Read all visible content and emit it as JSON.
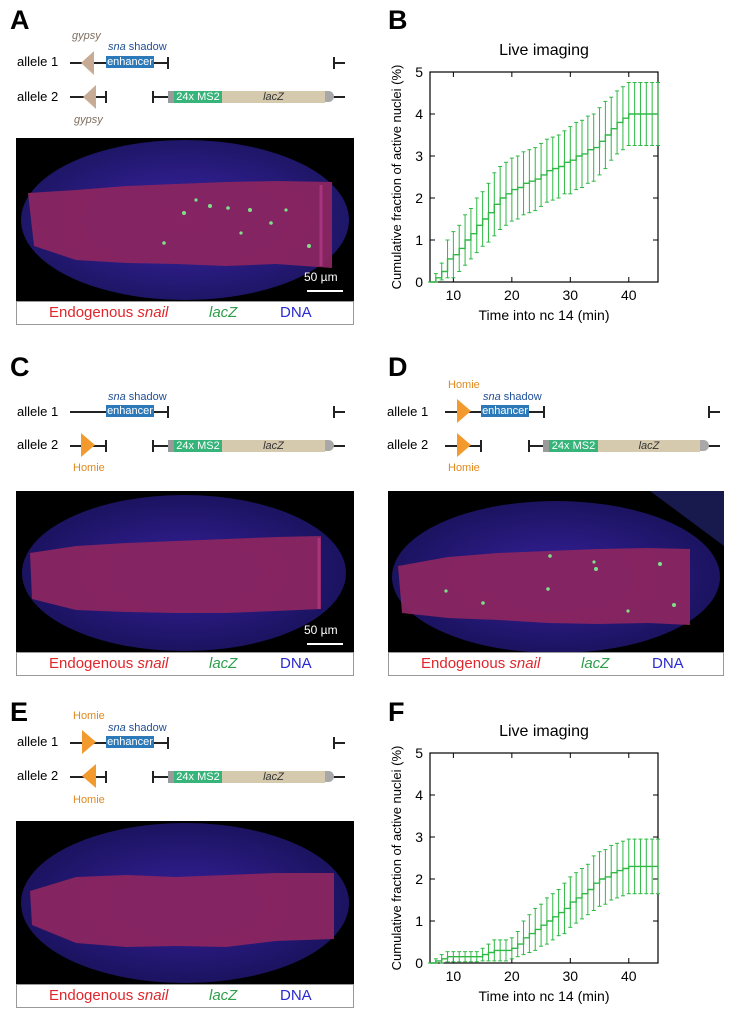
{
  "panels": {
    "A": {
      "label": "A",
      "allele1": "allele 1",
      "allele2": "allele 2",
      "insulator_top": "gypsy",
      "insulator_bottom": "gypsy",
      "enh_prefix": "sna",
      "enh_suffix": " shadow",
      "enhancer": "enhancer",
      "ms2": "24x MS2",
      "reporter": "lacZ",
      "scale": "50 µm",
      "cap_red": "Endogenous ",
      "cap_red_it": "snail",
      "cap_green": "lacZ",
      "cap_blue": "DNA"
    },
    "B": {
      "label": "B"
    },
    "C": {
      "label": "C",
      "allele1": "allele 1",
      "allele2": "allele 2",
      "insulator_bottom": "Homie",
      "enh_prefix": "sna",
      "enh_suffix": " shadow",
      "enhancer": "enhancer",
      "ms2": "24x MS2",
      "reporter": "lacZ",
      "scale": "50 µm",
      "cap_red": "Endogenous ",
      "cap_red_it": "snail",
      "cap_green": "lacZ",
      "cap_blue": "DNA"
    },
    "D": {
      "label": "D",
      "allele1": "allele 1",
      "allele2": "allele 2",
      "insulator_top": "Homie",
      "insulator_bottom": "Homie",
      "enh_prefix": "sna",
      "enh_suffix": " shadow",
      "enhancer": "enhancer",
      "ms2": "24x MS2",
      "reporter": "lacZ",
      "cap_red": "Endogenous ",
      "cap_red_it": "snail",
      "cap_green": "lacZ",
      "cap_blue": "DNA"
    },
    "E": {
      "label": "E",
      "allele1": "allele 1",
      "allele2": "allele 2",
      "insulator_top": "Homie",
      "insulator_bottom": "Homie",
      "enh_prefix": "sna",
      "enh_suffix": " shadow",
      "enhancer": "enhancer",
      "ms2": "24x MS2",
      "reporter": "lacZ",
      "cap_red": "Endogenous ",
      "cap_red_it": "snail",
      "cap_green": "lacZ",
      "cap_blue": "DNA"
    },
    "F": {
      "label": "F"
    }
  },
  "colors": {
    "series": "#2fb944",
    "errorbar": "#2fb944",
    "red": "#e0262c",
    "green": "#2e9e4b",
    "blue": "#2a2ad2",
    "gypsy": "#c7ab94",
    "homie": "#f29a2e"
  },
  "chart_data": [
    {
      "id": "B",
      "type": "line",
      "title": "Live imaging",
      "xlabel": "Time into nc 14 (min)",
      "ylabel": "Cumulative fraction of active nuclei (%)",
      "xlim": [
        6,
        45
      ],
      "ylim": [
        0,
        5
      ],
      "xticks": [
        10,
        20,
        30,
        40
      ],
      "yticks": [
        0,
        1,
        2,
        3,
        4,
        5
      ],
      "series": [
        {
          "x": [
            6,
            7,
            8,
            9,
            10,
            11,
            12,
            13,
            14,
            15,
            16,
            17,
            18,
            19,
            20,
            21,
            22,
            23,
            24,
            25,
            26,
            27,
            28,
            29,
            30,
            31,
            32,
            33,
            34,
            35,
            36,
            37,
            38,
            39,
            40,
            41,
            42,
            43,
            44,
            45
          ],
          "y": [
            0,
            0.1,
            0.25,
            0.55,
            0.65,
            0.8,
            1.0,
            1.15,
            1.35,
            1.5,
            1.65,
            1.85,
            2.0,
            2.1,
            2.2,
            2.25,
            2.35,
            2.4,
            2.45,
            2.55,
            2.65,
            2.7,
            2.75,
            2.85,
            2.9,
            3.0,
            3.05,
            3.15,
            3.2,
            3.35,
            3.5,
            3.65,
            3.8,
            3.9,
            4.0,
            4.0,
            4.0,
            4.0,
            4.0,
            4.0
          ],
          "err": [
            0,
            0.1,
            0.2,
            0.45,
            0.55,
            0.55,
            0.6,
            0.6,
            0.65,
            0.65,
            0.7,
            0.75,
            0.75,
            0.75,
            0.75,
            0.75,
            0.75,
            0.75,
            0.75,
            0.75,
            0.75,
            0.75,
            0.75,
            0.75,
            0.8,
            0.8,
            0.8,
            0.8,
            0.8,
            0.8,
            0.8,
            0.75,
            0.75,
            0.75,
            0.75,
            0.75,
            0.75,
            0.75,
            0.75,
            0.75
          ]
        }
      ]
    },
    {
      "id": "F",
      "type": "line",
      "title": "Live imaging",
      "xlabel": "Time into nc 14 (min)",
      "ylabel": "Cumulative fraction of active nuclei (%)",
      "xlim": [
        6,
        45
      ],
      "ylim": [
        0,
        5
      ],
      "xticks": [
        10,
        20,
        30,
        40
      ],
      "yticks": [
        0,
        1,
        2,
        3,
        4,
        5
      ],
      "series": [
        {
          "x": [
            6,
            7,
            8,
            9,
            10,
            11,
            12,
            13,
            14,
            15,
            16,
            17,
            18,
            19,
            20,
            21,
            22,
            23,
            24,
            25,
            26,
            27,
            28,
            29,
            30,
            31,
            32,
            33,
            34,
            35,
            36,
            37,
            38,
            39,
            40,
            41,
            42,
            43,
            44,
            45
          ],
          "y": [
            0,
            0.05,
            0.1,
            0.15,
            0.15,
            0.15,
            0.15,
            0.15,
            0.15,
            0.2,
            0.25,
            0.3,
            0.3,
            0.3,
            0.35,
            0.45,
            0.6,
            0.7,
            0.8,
            0.9,
            1.0,
            1.1,
            1.2,
            1.3,
            1.45,
            1.55,
            1.65,
            1.75,
            1.9,
            2.0,
            2.05,
            2.15,
            2.2,
            2.25,
            2.3,
            2.3,
            2.3,
            2.3,
            2.3,
            2.3
          ],
          "err": [
            0,
            0.05,
            0.1,
            0.12,
            0.12,
            0.12,
            0.12,
            0.12,
            0.12,
            0.15,
            0.2,
            0.25,
            0.25,
            0.25,
            0.25,
            0.3,
            0.4,
            0.45,
            0.5,
            0.5,
            0.55,
            0.55,
            0.55,
            0.6,
            0.6,
            0.6,
            0.6,
            0.6,
            0.65,
            0.65,
            0.65,
            0.65,
            0.65,
            0.65,
            0.65,
            0.65,
            0.65,
            0.65,
            0.65,
            0.65
          ]
        }
      ]
    }
  ]
}
